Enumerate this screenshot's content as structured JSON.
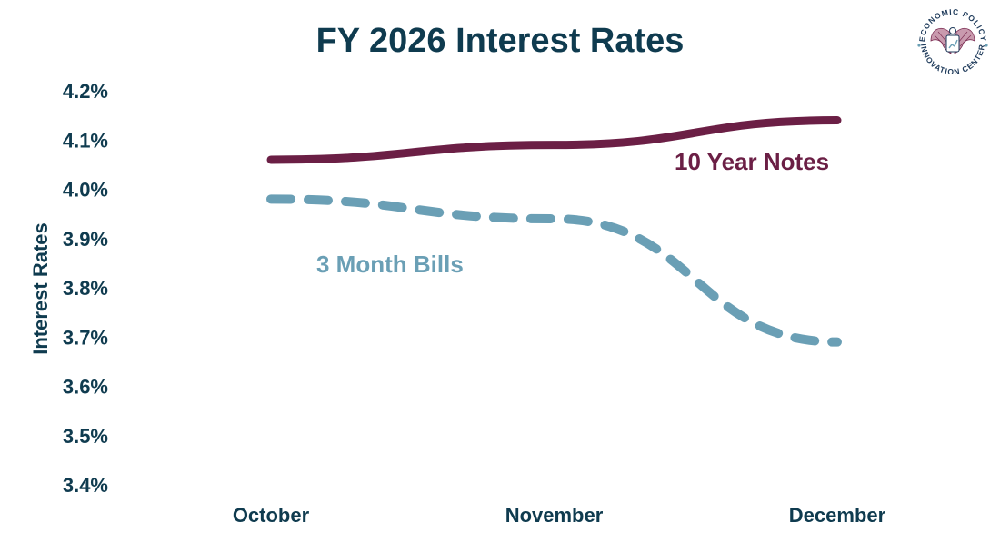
{
  "chart_data": {
    "type": "line",
    "title": "FY 2026 Interest Rates",
    "ylabel": "Interest Rates",
    "xlabel": "",
    "categories": [
      "October",
      "November",
      "December"
    ],
    "yticks": [
      "4.2%",
      "4.1%",
      "4.0%",
      "3.9%",
      "3.8%",
      "3.7%",
      "3.6%",
      "3.5%",
      "3.4%"
    ],
    "ylim": [
      3.4,
      4.2
    ],
    "grid": false,
    "series": [
      {
        "name": "10 Year Notes",
        "values": [
          4.06,
          4.09,
          4.14
        ],
        "color": "#6b1f45",
        "style": "solid"
      },
      {
        "name": "3 Month Bills",
        "values": [
          3.98,
          3.94,
          3.69
        ],
        "color": "#6a9fb5",
        "style": "dashed"
      }
    ]
  },
  "logo": {
    "top_text": "ECONOMIC POLICY",
    "bottom_text": "INNOVATION CENTER",
    "colors": {
      "text": "#1e3a5a",
      "accent": "#7a2a50",
      "ring": "#6a9fb5"
    }
  }
}
